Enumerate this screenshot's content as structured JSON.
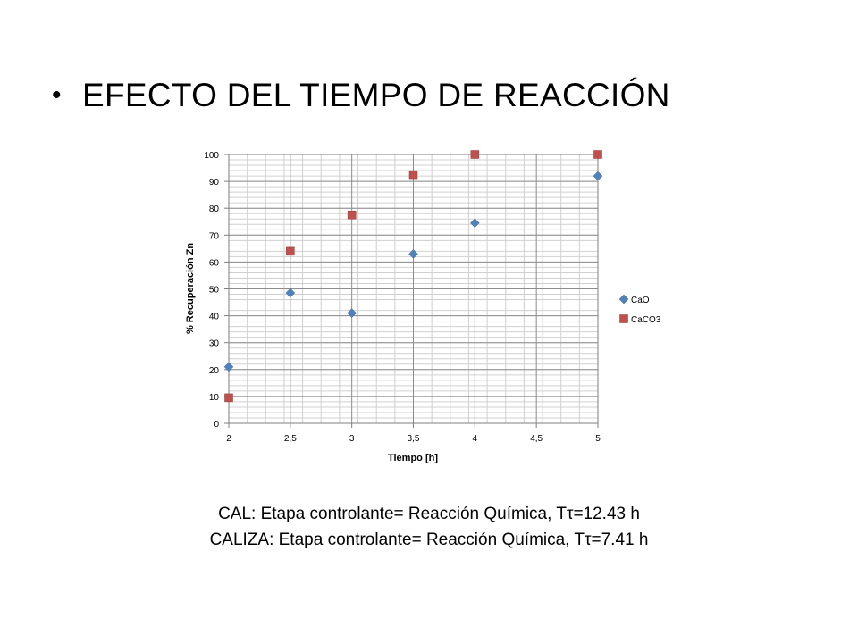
{
  "slide": {
    "bullet": "•",
    "title": "EFECTO DEL TIEMPO DE REACCIÓN",
    "captions": [
      "CAL: Etapa controlante= Reacción Química, Tτ=12.43 h",
      "CALIZA: Etapa controlante= Reacción Química, Tτ=7.41 h"
    ]
  },
  "chart_data": {
    "type": "scatter",
    "xlabel": "Tiempo [h]",
    "ylabel": "% Recuperación Zn",
    "xlim": [
      2,
      5
    ],
    "ylim": [
      0,
      100
    ],
    "x_ticks": [
      "2",
      "2,5",
      "3",
      "3,5",
      "4",
      "4,5",
      "5"
    ],
    "y_ticks": [
      "0",
      "10",
      "20",
      "30",
      "40",
      "50",
      "60",
      "70",
      "80",
      "90",
      "100"
    ],
    "grid": true,
    "legend_position": "right",
    "series": [
      {
        "name": "CaO",
        "marker": "diamond",
        "color": "#4F81BD",
        "x": [
          2,
          2.5,
          3,
          3.5,
          4,
          5
        ],
        "y": [
          21,
          48.5,
          41,
          63,
          74.5,
          92
        ]
      },
      {
        "name": "CaCO3",
        "marker": "square",
        "color": "#C0504D",
        "x": [
          2,
          2.5,
          3,
          3.5,
          4,
          5
        ],
        "y": [
          9.5,
          64,
          77.5,
          92.5,
          100,
          100
        ]
      }
    ]
  }
}
